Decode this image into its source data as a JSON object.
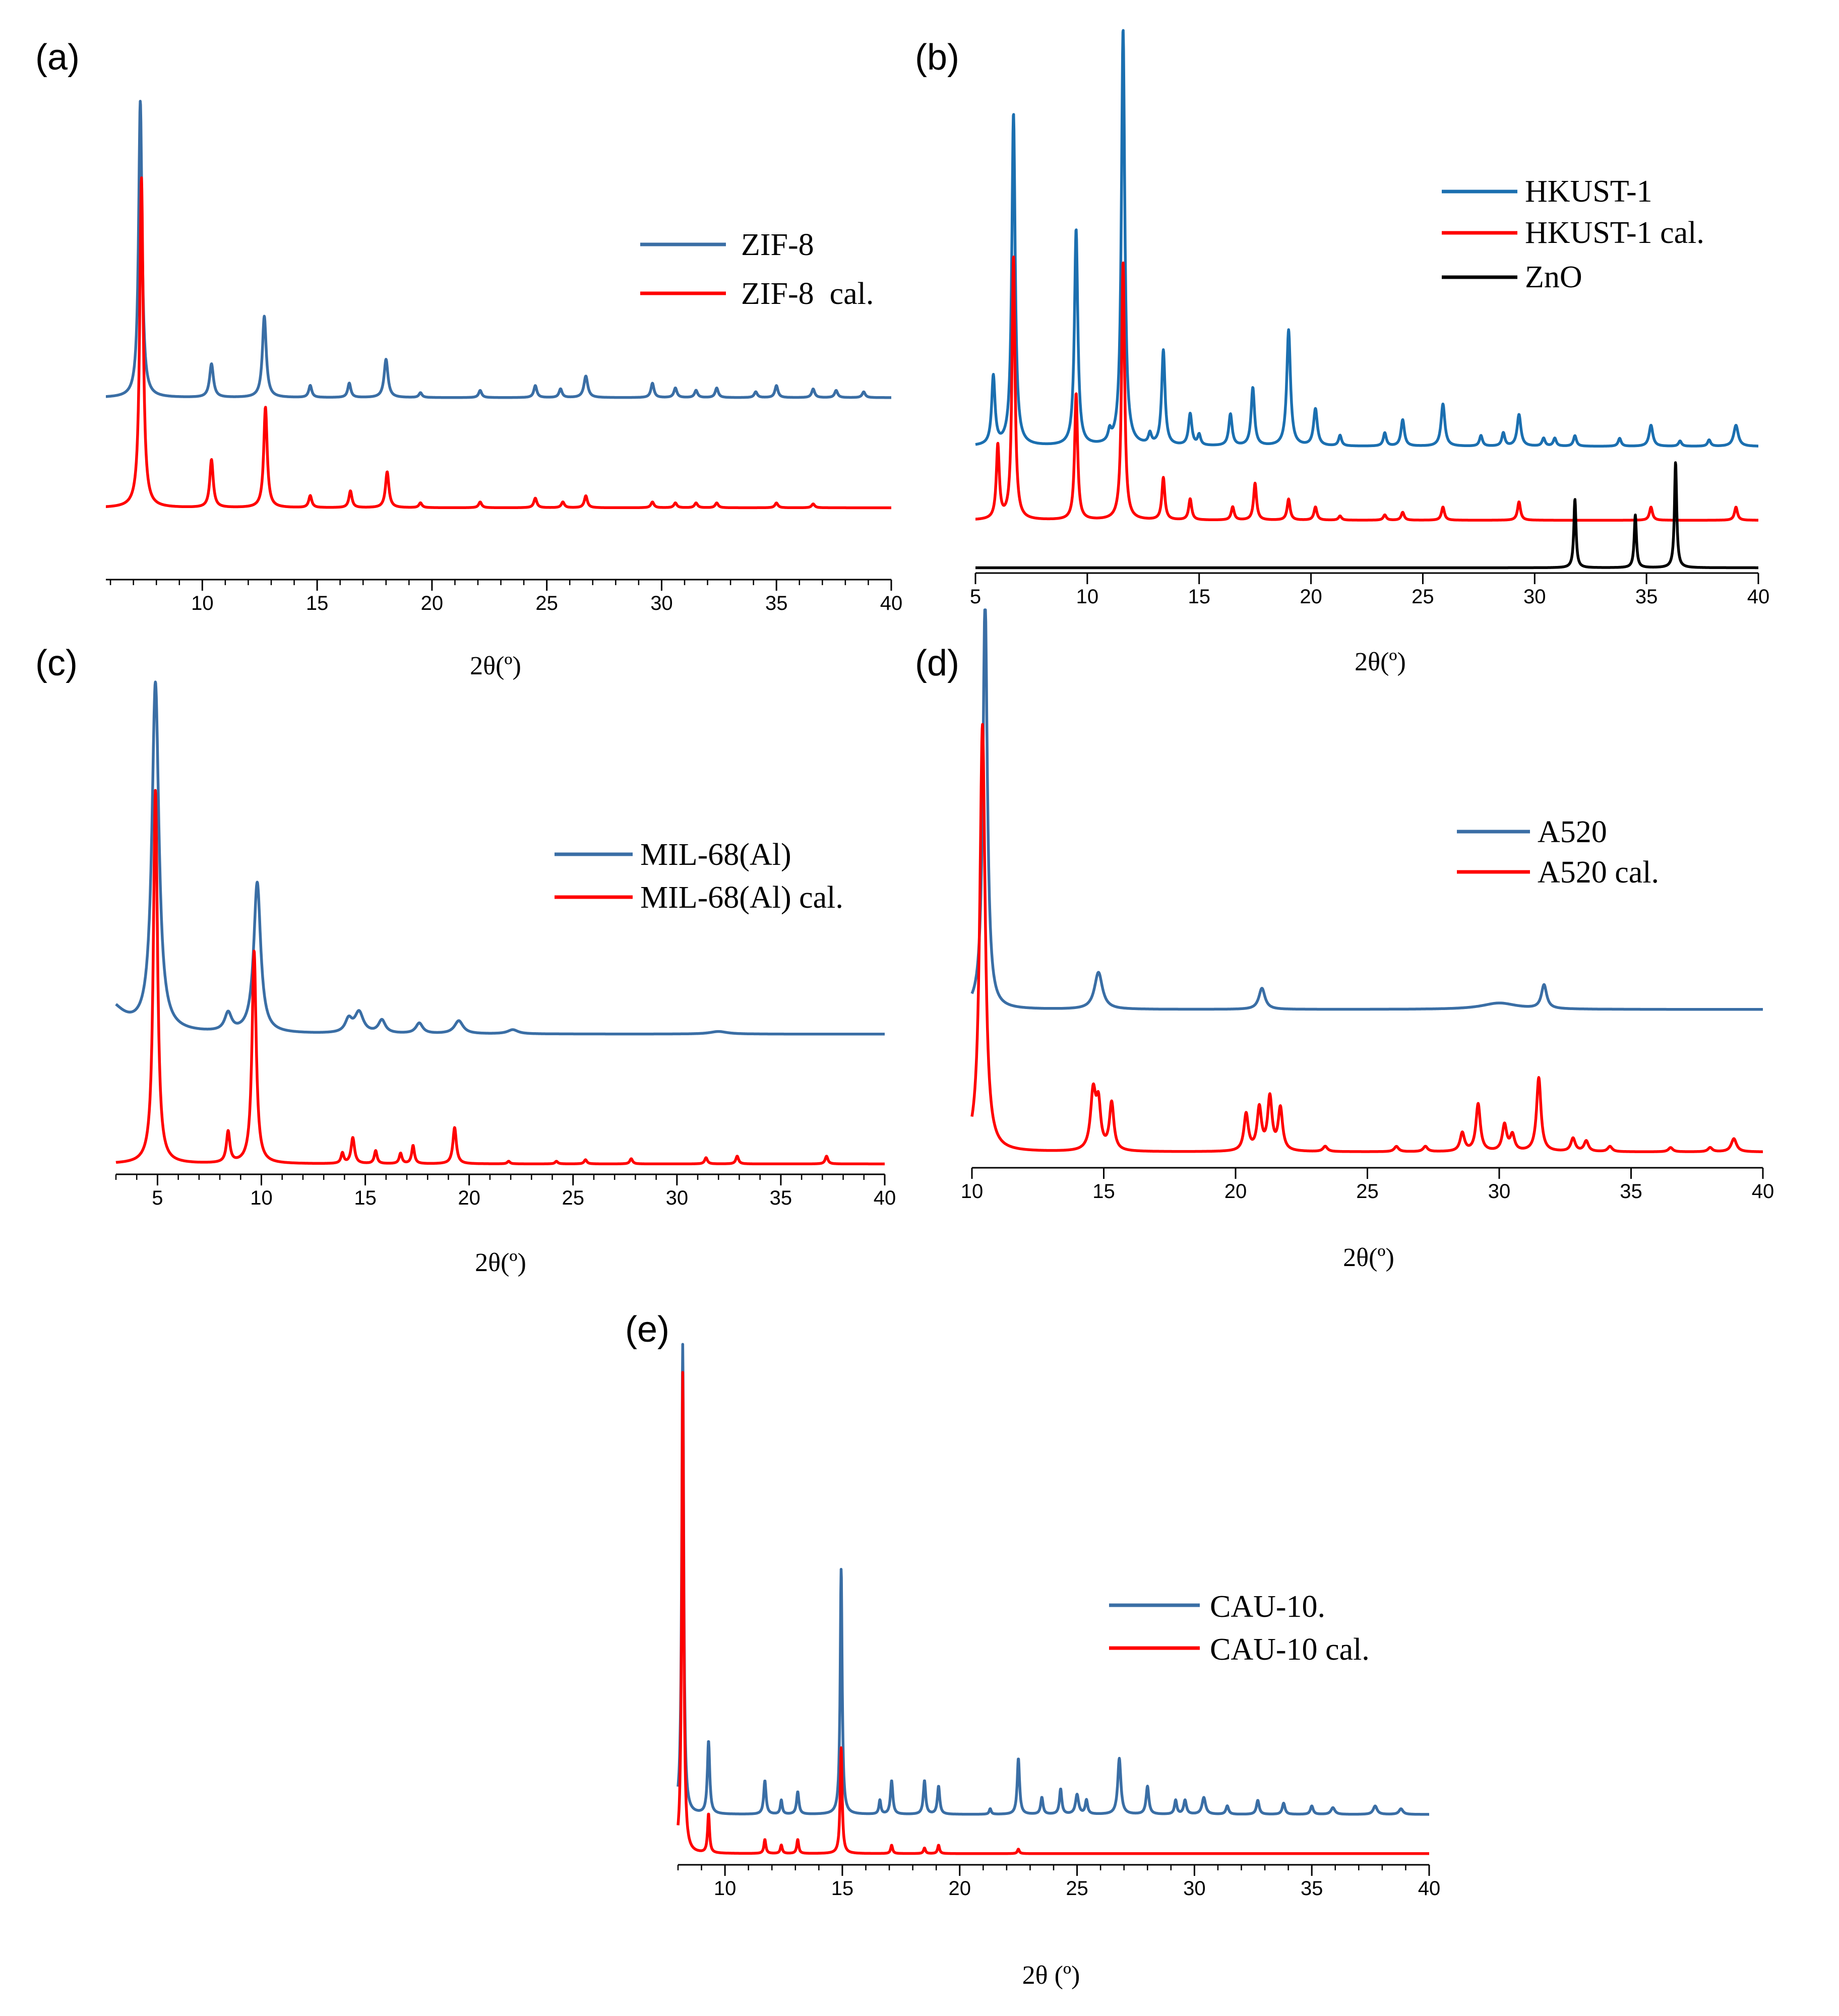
{
  "chart_data": [
    {
      "panel": "(a)",
      "type": "line",
      "xlabel": "2θ(º)",
      "xlim": [
        5.8,
        40
      ],
      "ylim": [
        0,
        1.0
      ],
      "ticks": [
        10,
        15,
        20,
        25,
        30,
        35,
        40
      ],
      "tick_labels": [
        "10",
        "15",
        "20",
        "25",
        "30",
        "35",
        "40"
      ],
      "minor_ticks": true,
      "legend": {
        "position": "top-right"
      },
      "series": [
        {
          "name": "ZIF-8",
          "color": "#3a6ea5",
          "baseline": 0.38,
          "peaks": [
            [
              7.3,
              0.62,
              0.09
            ],
            [
              10.4,
              0.07,
              0.1
            ],
            [
              12.7,
              0.17,
              0.1
            ],
            [
              14.7,
              0.025,
              0.08
            ],
            [
              16.4,
              0.03,
              0.08
            ],
            [
              18.0,
              0.08,
              0.1
            ],
            [
              19.5,
              0.01,
              0.08
            ],
            [
              22.1,
              0.015,
              0.08
            ],
            [
              24.5,
              0.025,
              0.08
            ],
            [
              25.6,
              0.018,
              0.08
            ],
            [
              26.7,
              0.045,
              0.1
            ],
            [
              29.6,
              0.03,
              0.08
            ],
            [
              30.6,
              0.02,
              0.08
            ],
            [
              31.5,
              0.015,
              0.08
            ],
            [
              32.4,
              0.02,
              0.08
            ],
            [
              34.1,
              0.012,
              0.08
            ],
            [
              35.0,
              0.025,
              0.08
            ],
            [
              36.6,
              0.018,
              0.08
            ],
            [
              37.6,
              0.015,
              0.08
            ],
            [
              38.8,
              0.012,
              0.08
            ]
          ]
        },
        {
          "name": "ZIF-8  cal.",
          "color": "#ff0000",
          "baseline": 0.15,
          "peaks": [
            [
              7.35,
              0.69,
              0.09
            ],
            [
              10.4,
              0.1,
              0.09
            ],
            [
              12.75,
              0.21,
              0.09
            ],
            [
              14.7,
              0.025,
              0.08
            ],
            [
              16.45,
              0.035,
              0.08
            ],
            [
              18.05,
              0.075,
              0.09
            ],
            [
              19.5,
              0.01,
              0.08
            ],
            [
              22.1,
              0.012,
              0.08
            ],
            [
              24.5,
              0.02,
              0.08
            ],
            [
              25.7,
              0.012,
              0.08
            ],
            [
              26.7,
              0.025,
              0.08
            ],
            [
              29.6,
              0.012,
              0.08
            ],
            [
              30.6,
              0.01,
              0.08
            ],
            [
              31.5,
              0.01,
              0.08
            ],
            [
              32.4,
              0.01,
              0.08
            ],
            [
              35.0,
              0.01,
              0.08
            ],
            [
              36.6,
              0.008,
              0.08
            ]
          ]
        }
      ]
    },
    {
      "panel": "(b)",
      "type": "line",
      "xlabel": "2θ(º)",
      "xlim": [
        5,
        40
      ],
      "ylim": [
        0,
        1.0
      ],
      "ticks": [
        5,
        10,
        15,
        20,
        25,
        30,
        35,
        40
      ],
      "tick_labels": [
        "5",
        "10",
        "15",
        "20",
        "25",
        "30",
        "35",
        "40"
      ],
      "minor_ticks": false,
      "legend": {
        "position": "top-right"
      },
      "series": [
        {
          "name": "HKUST-1",
          "color": "#1b6fb0",
          "baseline": 0.24,
          "peaks": [
            [
              5.8,
              0.13,
              0.09
            ],
            [
              6.7,
              0.63,
              0.09
            ],
            [
              9.5,
              0.41,
              0.09
            ],
            [
              11.0,
              0.02,
              0.08
            ],
            [
              11.6,
              0.79,
              0.09
            ],
            [
              12.8,
              0.02,
              0.08
            ],
            [
              13.4,
              0.18,
              0.09
            ],
            [
              14.6,
              0.06,
              0.09
            ],
            [
              15.0,
              0.02,
              0.08
            ],
            [
              16.4,
              0.06,
              0.09
            ],
            [
              17.4,
              0.11,
              0.09
            ],
            [
              19.0,
              0.22,
              0.1
            ],
            [
              20.2,
              0.07,
              0.1
            ],
            [
              21.3,
              0.02,
              0.08
            ],
            [
              23.3,
              0.025,
              0.08
            ],
            [
              24.1,
              0.05,
              0.09
            ],
            [
              25.9,
              0.08,
              0.1
            ],
            [
              27.6,
              0.02,
              0.08
            ],
            [
              28.6,
              0.025,
              0.08
            ],
            [
              29.3,
              0.06,
              0.1
            ],
            [
              30.4,
              0.015,
              0.08
            ],
            [
              30.9,
              0.015,
              0.08
            ],
            [
              31.8,
              0.02,
              0.08
            ],
            [
              33.8,
              0.015,
              0.08
            ],
            [
              35.2,
              0.04,
              0.1
            ],
            [
              36.5,
              0.01,
              0.08
            ],
            [
              37.8,
              0.012,
              0.08
            ],
            [
              39.0,
              0.04,
              0.12
            ]
          ]
        },
        {
          "name": "HKUST-1 cal.",
          "color": "#ff0000",
          "baseline": 0.1,
          "peaks": [
            [
              6.0,
              0.14,
              0.08
            ],
            [
              6.7,
              0.5,
              0.08
            ],
            [
              9.5,
              0.24,
              0.08
            ],
            [
              11.6,
              0.49,
              0.08
            ],
            [
              13.4,
              0.08,
              0.08
            ],
            [
              14.6,
              0.04,
              0.08
            ],
            [
              16.5,
              0.025,
              0.08
            ],
            [
              17.5,
              0.07,
              0.08
            ],
            [
              19.0,
              0.04,
              0.08
            ],
            [
              20.2,
              0.025,
              0.08
            ],
            [
              21.3,
              0.008,
              0.08
            ],
            [
              23.3,
              0.01,
              0.08
            ],
            [
              24.1,
              0.015,
              0.08
            ],
            [
              25.9,
              0.025,
              0.08
            ],
            [
              29.3,
              0.035,
              0.08
            ],
            [
              35.2,
              0.025,
              0.08
            ],
            [
              39.0,
              0.025,
              0.08
            ]
          ]
        },
        {
          "name": "ZnO",
          "color": "#000000",
          "baseline": 0.01,
          "peaks": [
            [
              31.8,
              0.13,
              0.06
            ],
            [
              34.5,
              0.1,
              0.06
            ],
            [
              36.3,
              0.2,
              0.06
            ]
          ]
        }
      ]
    },
    {
      "panel": "(c)",
      "type": "line",
      "xlabel": "2θ(º)",
      "xlim": [
        3,
        40
      ],
      "ylim": [
        0,
        1.0
      ],
      "ticks": [
        5,
        10,
        15,
        20,
        25,
        30,
        35,
        40
      ],
      "tick_labels": [
        "5",
        "10",
        "15",
        "20",
        "25",
        "30",
        "35",
        "40"
      ],
      "minor_ticks": true,
      "legend": {
        "position": "top-right"
      },
      "series": [
        {
          "name": "MIL-68(Al)",
          "color": "#3a6ea5",
          "baseline": 0.27,
          "peaks": [
            [
              2.6,
              0.06,
              0.9
            ],
            [
              4.9,
              0.67,
              0.2
            ],
            [
              8.4,
              0.035,
              0.2
            ],
            [
              9.8,
              0.29,
              0.2
            ],
            [
              14.2,
              0.025,
              0.2
            ],
            [
              14.7,
              0.04,
              0.25
            ],
            [
              15.8,
              0.025,
              0.2
            ],
            [
              17.6,
              0.02,
              0.2
            ],
            [
              19.5,
              0.025,
              0.25
            ],
            [
              22.1,
              0.008,
              0.3
            ],
            [
              32.0,
              0.005,
              0.5
            ]
          ]
        },
        {
          "name": "MIL-68(Al) cal.",
          "color": "#ff0000",
          "baseline": 0.02,
          "peaks": [
            [
              4.9,
              0.72,
              0.12
            ],
            [
              8.4,
              0.06,
              0.1
            ],
            [
              9.65,
              0.41,
              0.12
            ],
            [
              13.9,
              0.02,
              0.08
            ],
            [
              14.4,
              0.05,
              0.1
            ],
            [
              15.5,
              0.025,
              0.08
            ],
            [
              16.7,
              0.02,
              0.08
            ],
            [
              17.3,
              0.035,
              0.08
            ],
            [
              19.3,
              0.07,
              0.1
            ],
            [
              21.9,
              0.005,
              0.08
            ],
            [
              24.2,
              0.005,
              0.08
            ],
            [
              25.6,
              0.008,
              0.08
            ],
            [
              27.8,
              0.01,
              0.08
            ],
            [
              31.4,
              0.012,
              0.08
            ],
            [
              32.9,
              0.015,
              0.08
            ],
            [
              37.2,
              0.015,
              0.08
            ]
          ]
        }
      ]
    },
    {
      "panel": "(d)",
      "type": "line",
      "xlabel": "2θ(º)",
      "xlim": [
        10,
        40
      ],
      "ylim": [
        0,
        1.0
      ],
      "ticks": [
        10,
        15,
        20,
        25,
        30,
        35,
        40
      ],
      "tick_labels": [
        "10",
        "15",
        "20",
        "25",
        "30",
        "35",
        "40"
      ],
      "minor_ticks": false,
      "legend": {
        "position": "top-right"
      },
      "series": [
        {
          "name": "A520",
          "color": "#3a6ea5",
          "baseline": 0.3,
          "peaks": [
            [
              10.5,
              0.78,
              0.1
            ],
            [
              14.8,
              0.07,
              0.18
            ],
            [
              21.0,
              0.04,
              0.14
            ],
            [
              30.0,
              0.012,
              0.8
            ],
            [
              31.7,
              0.045,
              0.12
            ]
          ]
        },
        {
          "name": "A520 cal.",
          "color": "#ff0000",
          "baseline": 0.03,
          "peaks": [
            [
              10.4,
              0.81,
              0.12
            ],
            [
              14.6,
              0.11,
              0.12
            ],
            [
              14.8,
              0.08,
              0.1
            ],
            [
              15.3,
              0.09,
              0.1
            ],
            [
              20.4,
              0.07,
              0.1
            ],
            [
              20.9,
              0.08,
              0.1
            ],
            [
              21.3,
              0.1,
              0.1
            ],
            [
              21.7,
              0.08,
              0.1
            ],
            [
              23.4,
              0.01,
              0.1
            ],
            [
              26.1,
              0.01,
              0.1
            ],
            [
              27.2,
              0.01,
              0.1
            ],
            [
              28.6,
              0.035,
              0.1
            ],
            [
              29.2,
              0.09,
              0.1
            ],
            [
              30.2,
              0.05,
              0.1
            ],
            [
              30.5,
              0.03,
              0.1
            ],
            [
              31.5,
              0.14,
              0.1
            ],
            [
              32.8,
              0.025,
              0.1
            ],
            [
              33.3,
              0.02,
              0.1
            ],
            [
              34.2,
              0.01,
              0.1
            ],
            [
              36.5,
              0.008,
              0.1
            ],
            [
              38.0,
              0.008,
              0.1
            ],
            [
              38.9,
              0.025,
              0.12
            ]
          ]
        }
      ]
    },
    {
      "panel": "(e)",
      "type": "line",
      "xlabel": "2θ (º)",
      "xlim": [
        8,
        40
      ],
      "ylim": [
        0,
        1.0
      ],
      "ticks": [
        10,
        15,
        20,
        25,
        30,
        35,
        40
      ],
      "tick_labels": [
        "10",
        "15",
        "20",
        "25",
        "30",
        "35",
        "40"
      ],
      "minor_ticks": true,
      "legend": {
        "position": "right"
      },
      "series": [
        {
          "name": "CAU-10.",
          "color": "#3a6ea5",
          "baseline": 0.09,
          "peaks": [
            [
              8.2,
              0.84,
              0.05
            ],
            [
              9.3,
              0.13,
              0.06
            ],
            [
              11.7,
              0.06,
              0.06
            ],
            [
              12.4,
              0.025,
              0.05
            ],
            [
              13.1,
              0.04,
              0.06
            ],
            [
              14.95,
              0.44,
              0.05
            ],
            [
              16.6,
              0.025,
              0.05
            ],
            [
              17.1,
              0.06,
              0.06
            ],
            [
              18.5,
              0.06,
              0.06
            ],
            [
              19.1,
              0.05,
              0.06
            ],
            [
              21.3,
              0.01,
              0.05
            ],
            [
              22.5,
              0.1,
              0.06
            ],
            [
              23.5,
              0.03,
              0.06
            ],
            [
              24.3,
              0.045,
              0.06
            ],
            [
              25.0,
              0.035,
              0.08
            ],
            [
              25.4,
              0.025,
              0.06
            ],
            [
              26.8,
              0.1,
              0.08
            ],
            [
              28.0,
              0.05,
              0.07
            ],
            [
              29.2,
              0.025,
              0.06
            ],
            [
              29.6,
              0.025,
              0.07
            ],
            [
              30.4,
              0.03,
              0.09
            ],
            [
              31.4,
              0.015,
              0.07
            ],
            [
              32.7,
              0.025,
              0.07
            ],
            [
              33.8,
              0.02,
              0.07
            ],
            [
              35.0,
              0.015,
              0.07
            ],
            [
              35.9,
              0.012,
              0.1
            ],
            [
              37.7,
              0.015,
              0.1
            ],
            [
              38.8,
              0.01,
              0.1
            ]
          ]
        },
        {
          "name": "CAU-10 cal.",
          "color": "#ff0000",
          "baseline": 0.02,
          "peaks": [
            [
              8.2,
              0.86,
              0.05
            ],
            [
              9.3,
              0.07,
              0.05
            ],
            [
              11.7,
              0.025,
              0.05
            ],
            [
              12.4,
              0.015,
              0.05
            ],
            [
              13.1,
              0.025,
              0.05
            ],
            [
              14.95,
              0.19,
              0.05
            ],
            [
              17.1,
              0.015,
              0.05
            ],
            [
              18.5,
              0.01,
              0.05
            ],
            [
              19.1,
              0.015,
              0.05
            ],
            [
              22.5,
              0.008,
              0.05
            ]
          ]
        }
      ]
    }
  ]
}
